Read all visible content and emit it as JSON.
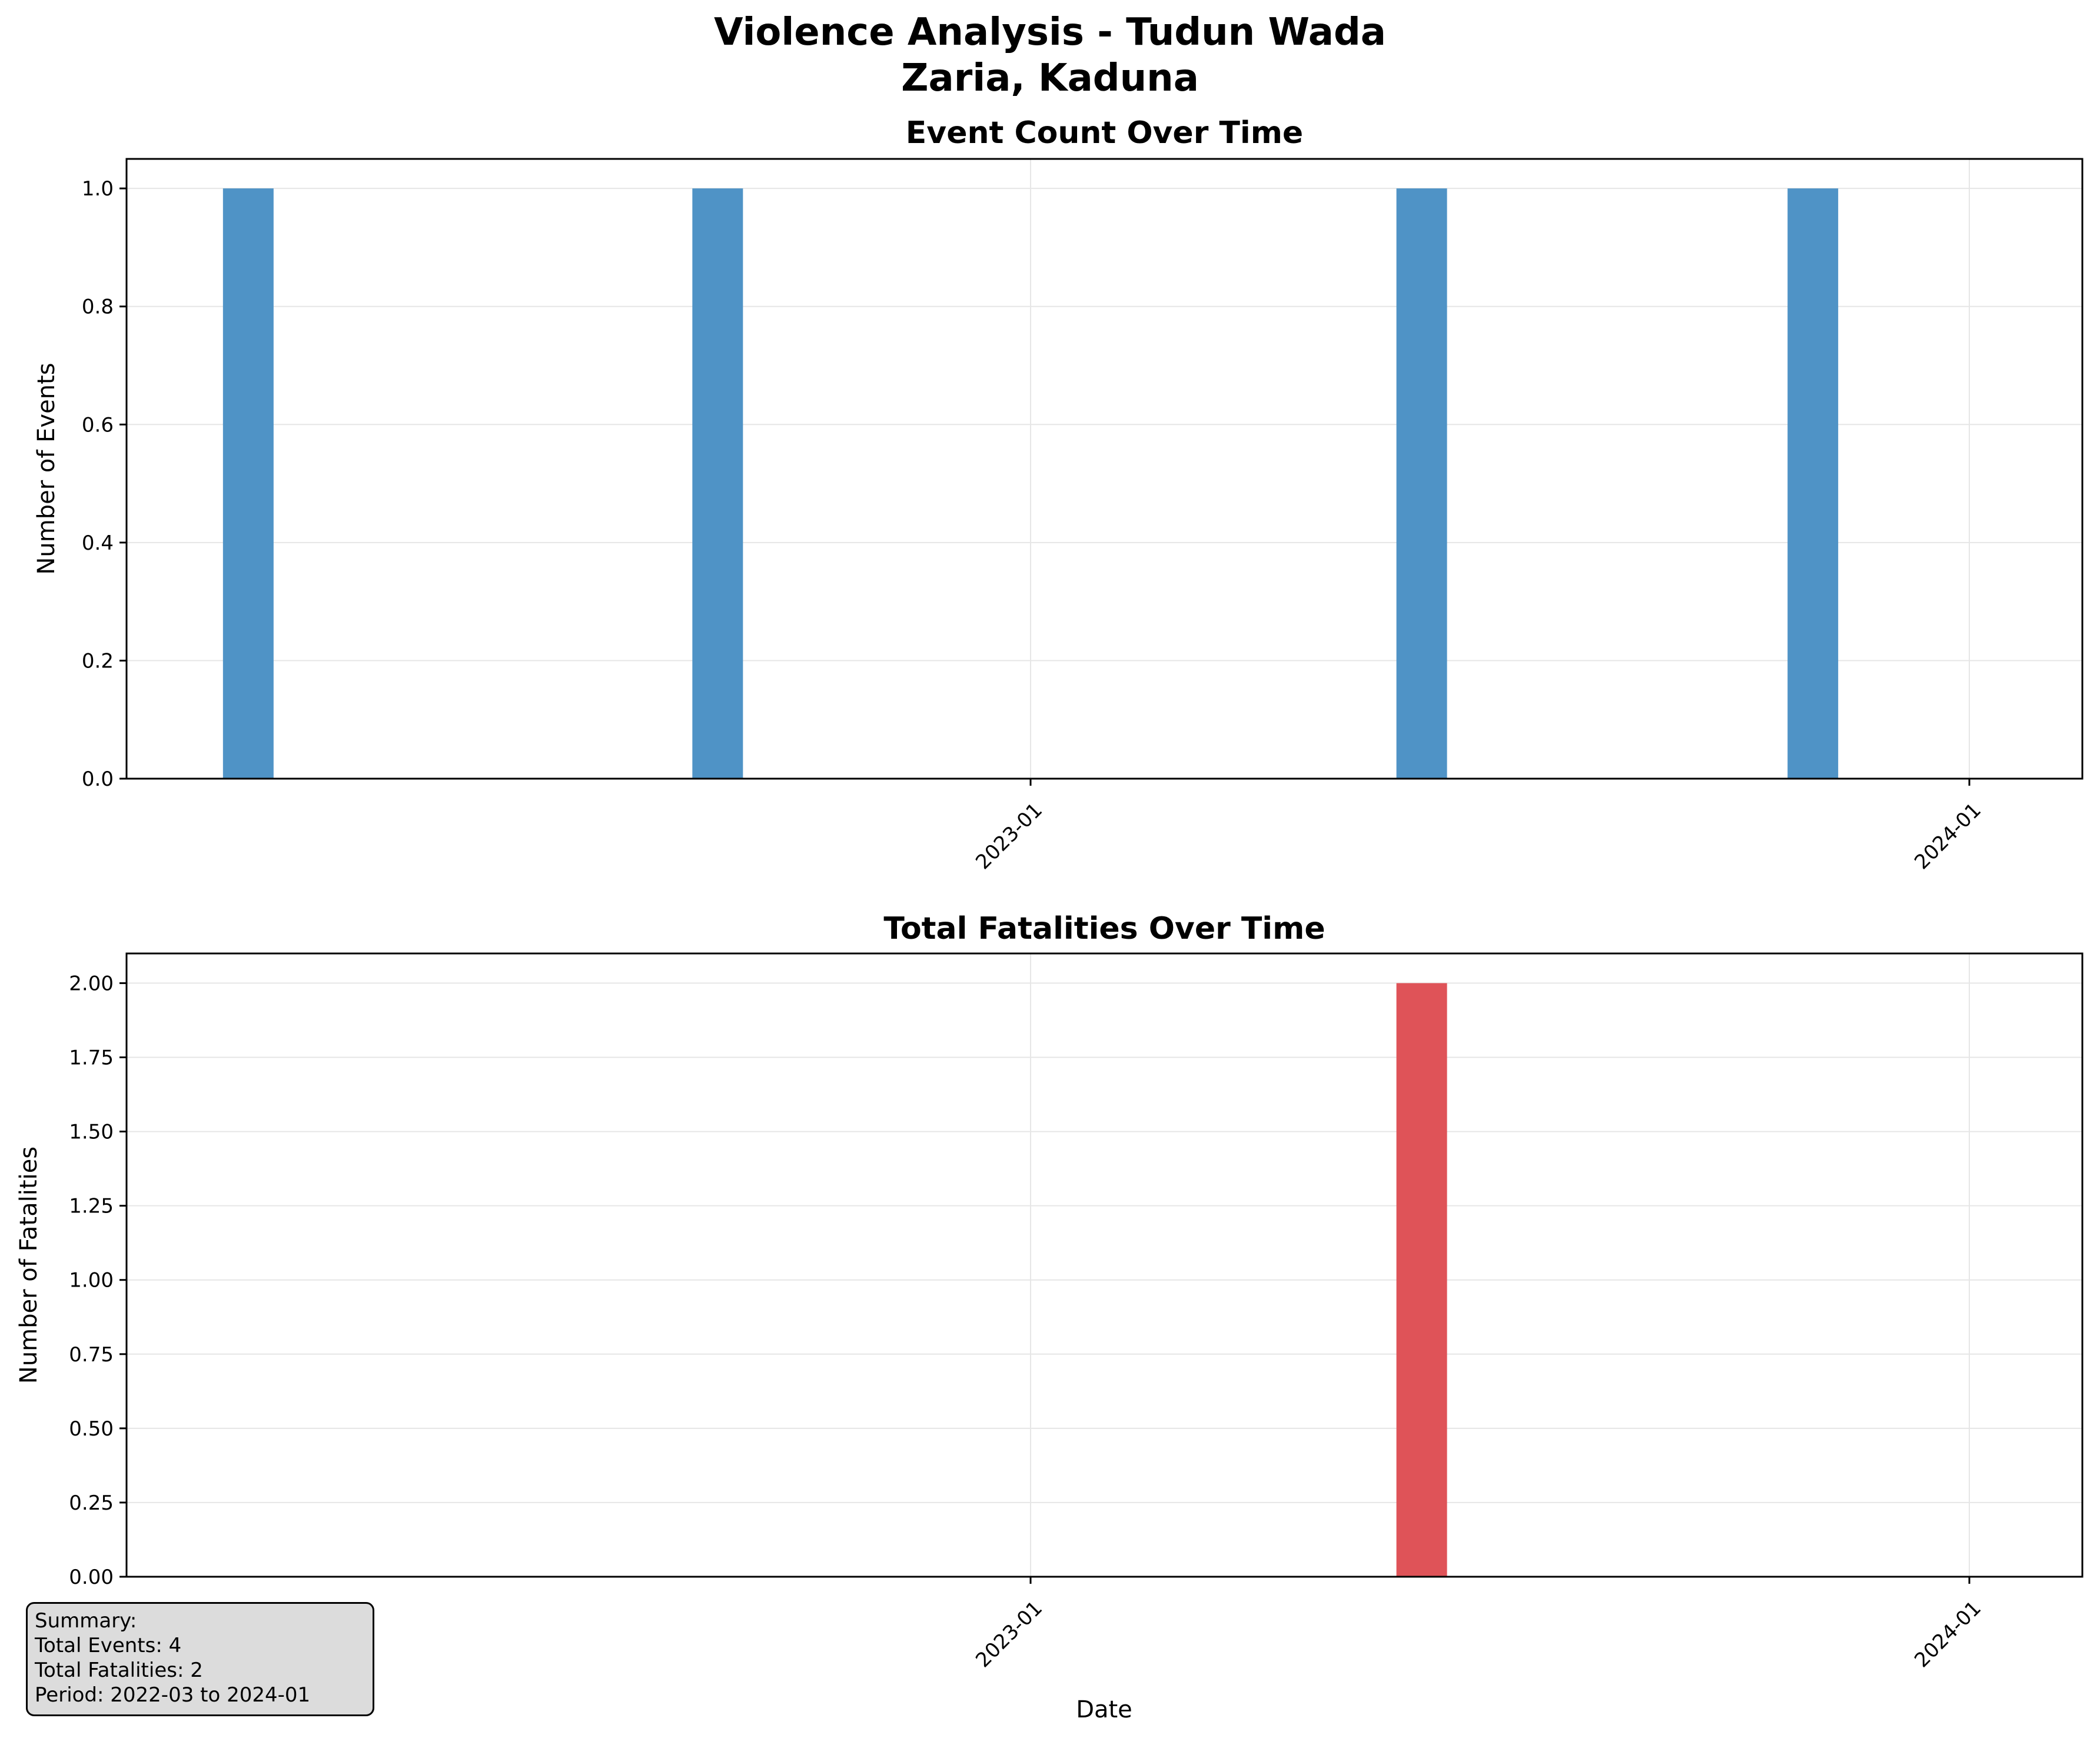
{
  "suptitle": [
    "Violence Analysis - Tudun Wada",
    "Zaria, Kaduna"
  ],
  "colors": {
    "events_bar": "#4f93c6",
    "fatalities_bar": "#df5358",
    "grid": "#e6e6e6"
  },
  "chart_data": [
    {
      "type": "bar",
      "title": "Event Count Over Time",
      "xlabel": "",
      "ylabel": "Number of Events",
      "x": [
        "2022-03",
        "2022-09",
        "2023-06",
        "2023-11"
      ],
      "values": [
        1,
        1,
        1,
        1
      ],
      "ylim": [
        0,
        1.05
      ],
      "yticks": [
        "0.0",
        "0.2",
        "0.4",
        "0.6",
        "0.8",
        "1.0"
      ],
      "ytick_values": [
        0,
        0.2,
        0.4,
        0.6,
        0.8,
        1.0
      ],
      "xticks": [
        "2023-01",
        "2024-01"
      ],
      "grid": true
    },
    {
      "type": "bar",
      "title": "Total Fatalities Over Time",
      "xlabel": "Date",
      "ylabel": "Number of Fatalities",
      "x": [
        "2022-03",
        "2022-09",
        "2023-06",
        "2023-11"
      ],
      "values": [
        0,
        0,
        2,
        0
      ],
      "ylim": [
        0,
        2.1
      ],
      "yticks": [
        "0.00",
        "0.25",
        "0.50",
        "0.75",
        "1.00",
        "1.25",
        "1.50",
        "1.75",
        "2.00"
      ],
      "ytick_values": [
        0,
        0.25,
        0.5,
        0.75,
        1.0,
        1.25,
        1.5,
        1.75,
        2.0
      ],
      "xticks": [
        "2023-01",
        "2024-01"
      ],
      "grid": true
    }
  ],
  "summary": {
    "heading": "Summary:",
    "lines": [
      "Total Events: 4",
      "Total Fatalities: 2",
      "Period: 2022-03 to 2024-01"
    ]
  }
}
